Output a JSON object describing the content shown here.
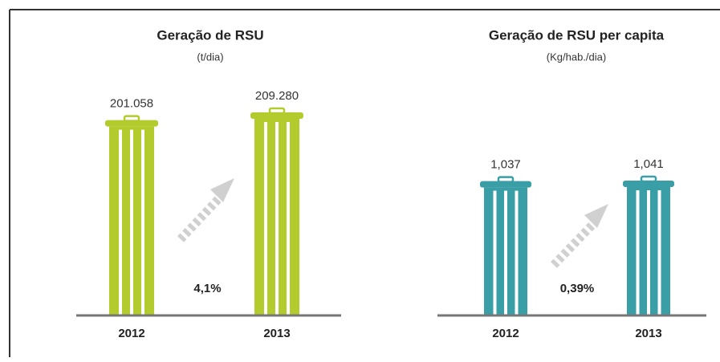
{
  "chart_data": [
    {
      "type": "bar",
      "title": "Geração de RSU",
      "subtitle": "(t/dia)",
      "categories": [
        "2012",
        "2013"
      ],
      "values": [
        201058,
        209280
      ],
      "value_labels": [
        "201.058",
        "209.280"
      ],
      "color": "#b3cb2c",
      "annotation": "4,1%"
    },
    {
      "type": "bar",
      "title": "Geração de RSU per capita",
      "subtitle": "(Kg/hab./dia)",
      "categories": [
        "2012",
        "2013"
      ],
      "values": [
        1.037,
        1.041
      ],
      "value_labels": [
        "1,037",
        "1,041"
      ],
      "color": "#3a9ea7",
      "annotation": "0,39%"
    }
  ]
}
